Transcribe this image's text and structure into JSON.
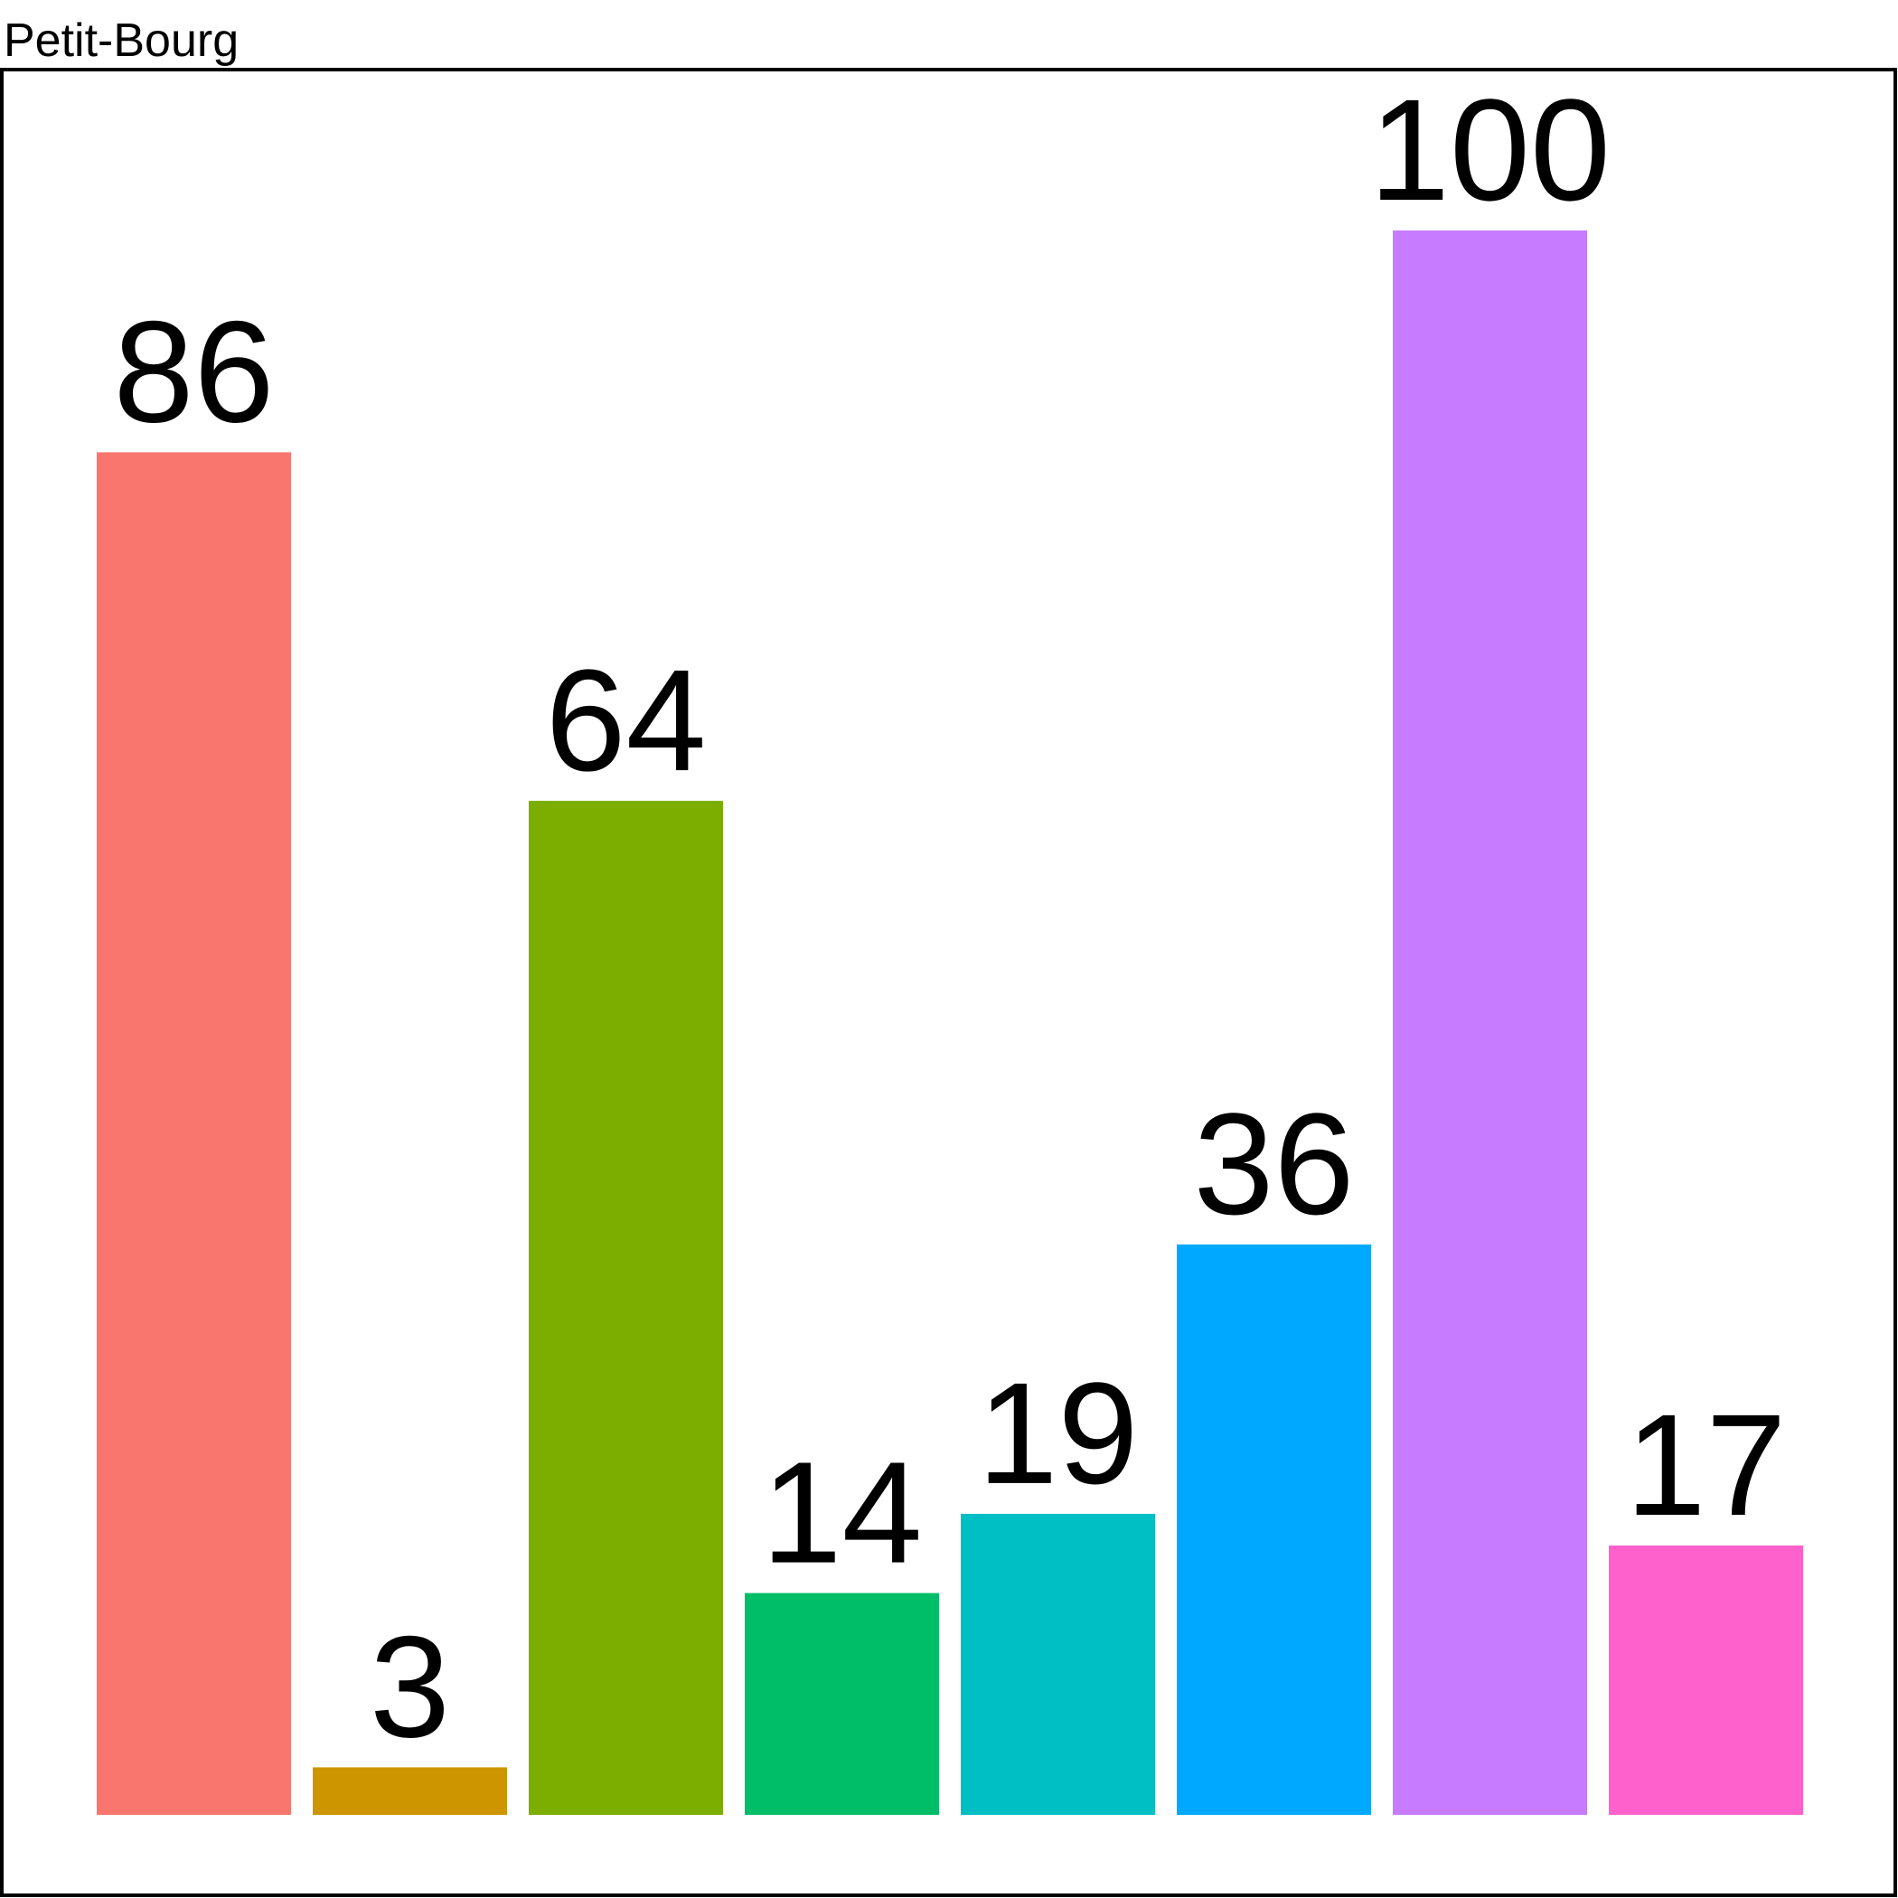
{
  "chart_data": {
    "type": "bar",
    "title": "",
    "xlabel": "",
    "ylabel": "",
    "facet_label": "Petit-Bourg",
    "grid": false,
    "legend": "none",
    "categories": [
      "",
      "",
      "",
      "",
      "",
      "",
      "",
      ""
    ],
    "values": [
      86,
      3,
      64,
      14,
      19,
      36,
      100,
      17
    ],
    "colors": [
      "#F8766D",
      "#CD9600",
      "#7CAE00",
      "#00BE67",
      "#00BFC4",
      "#00A9FF",
      "#C77CFF",
      "#FF61CC"
    ],
    "ylim": [
      0,
      100
    ]
  }
}
